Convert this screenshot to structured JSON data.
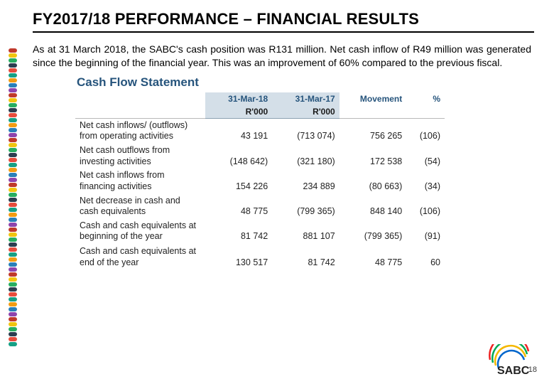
{
  "title": "FY2017/18 PERFORMANCE – FINANCIAL RESULTS",
  "intro": "As at 31 March 2018, the SABC's cash position was R131 million. Net cash inflow of R49 million was generated since the beginning of the financial year. This was an improvement of 60% compared to the previous fiscal.",
  "statement": {
    "title": "Cash Flow Statement",
    "title_color": "#26547c",
    "header": {
      "row1": [
        "",
        "31-Mar-18",
        "31-Mar-17",
        "Movement",
        "%"
      ],
      "row2": [
        "",
        "R'000",
        "R'000",
        "",
        ""
      ],
      "highlight_bg": "#d4dfe8",
      "highlight_color": "#26547c"
    },
    "rows": [
      {
        "label": "Net cash inflows/ (outflows) from operating activities",
        "c18": "43 191",
        "c17": "(713 074)",
        "mv": "756 265",
        "pct": "(106)"
      },
      {
        "label": "Net cash outflows from investing activities",
        "c18": "(148 642)",
        "c17": "(321 180)",
        "mv": "172 538",
        "pct": "(54)"
      },
      {
        "label": "Net cash inflows from financing activities",
        "c18": "154 226",
        "c17": "234 889",
        "mv": "(80 663)",
        "pct": "(34)"
      },
      {
        "label": "Net decrease in cash and cash equivalents",
        "c18": "48 775",
        "c17": "(799 365)",
        "mv": "848 140",
        "pct": "(106)"
      },
      {
        "label": "Cash and cash equivalents at beginning of the year",
        "c18": "81 742",
        "c17": "881 107",
        "mv": "(799 365)",
        "pct": "(91)"
      },
      {
        "label": "Cash and cash equivalents at end of the year",
        "c18": "130 517",
        "c17": "81 742",
        "mv": "48 775",
        "pct": "60"
      }
    ]
  },
  "page_number": "18",
  "beads": [
    "#c0392b",
    "#f1c40f",
    "#27ae60",
    "#2c3e50",
    "#e74c3c",
    "#16a085",
    "#f39c12",
    "#2980b9",
    "#8e44ad",
    "#c0392b",
    "#f1c40f",
    "#27ae60",
    "#2c3e50",
    "#e74c3c",
    "#16a085",
    "#f39c12",
    "#2980b9",
    "#8e44ad",
    "#c0392b",
    "#f1c40f",
    "#27ae60",
    "#2c3e50",
    "#e74c3c",
    "#16a085",
    "#f39c12",
    "#2980b9",
    "#8e44ad",
    "#c0392b",
    "#f1c40f",
    "#27ae60",
    "#2c3e50",
    "#e74c3c",
    "#16a085",
    "#f39c12",
    "#2980b9",
    "#8e44ad",
    "#c0392b",
    "#f1c40f",
    "#27ae60",
    "#2c3e50",
    "#e74c3c",
    "#16a085",
    "#f39c12",
    "#2980b9",
    "#8e44ad",
    "#c0392b",
    "#f1c40f",
    "#27ae60",
    "#2c3e50",
    "#e74c3c",
    "#16a085",
    "#f39c12",
    "#2980b9",
    "#8e44ad",
    "#c0392b",
    "#f1c40f",
    "#27ae60",
    "#2c3e50",
    "#e74c3c",
    "#16a085"
  ],
  "logo": {
    "text": "SABC",
    "arc_colors": [
      "#e22",
      "#0a5",
      "#f5b800",
      "#06c"
    ]
  }
}
